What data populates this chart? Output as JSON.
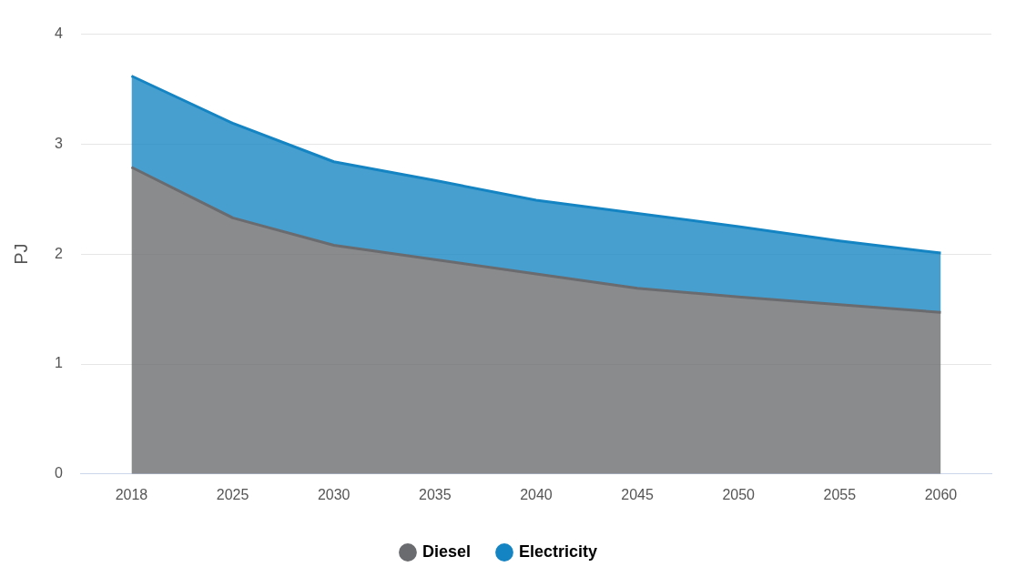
{
  "chart_data": {
    "type": "area",
    "stacked": true,
    "ylabel": "PJ",
    "categories": [
      "2018",
      "2025",
      "2030",
      "2035",
      "2040",
      "2045",
      "2050",
      "2055",
      "2060"
    ],
    "series": [
      {
        "name": "Diesel",
        "color": "#6a6b6e",
        "values": [
          2.79,
          2.33,
          2.08,
          1.95,
          1.82,
          1.69,
          1.61,
          1.54,
          1.47
        ]
      },
      {
        "name": "Electricity",
        "color": "#1584c2",
        "values": [
          0.83,
          0.86,
          0.76,
          0.72,
          0.67,
          0.68,
          0.64,
          0.58,
          0.54
        ]
      }
    ],
    "ylim": [
      0,
      4
    ],
    "yticks": [
      0,
      1,
      2,
      3,
      4
    ],
    "grid": "y",
    "legend": "bottom",
    "marker": "none"
  }
}
